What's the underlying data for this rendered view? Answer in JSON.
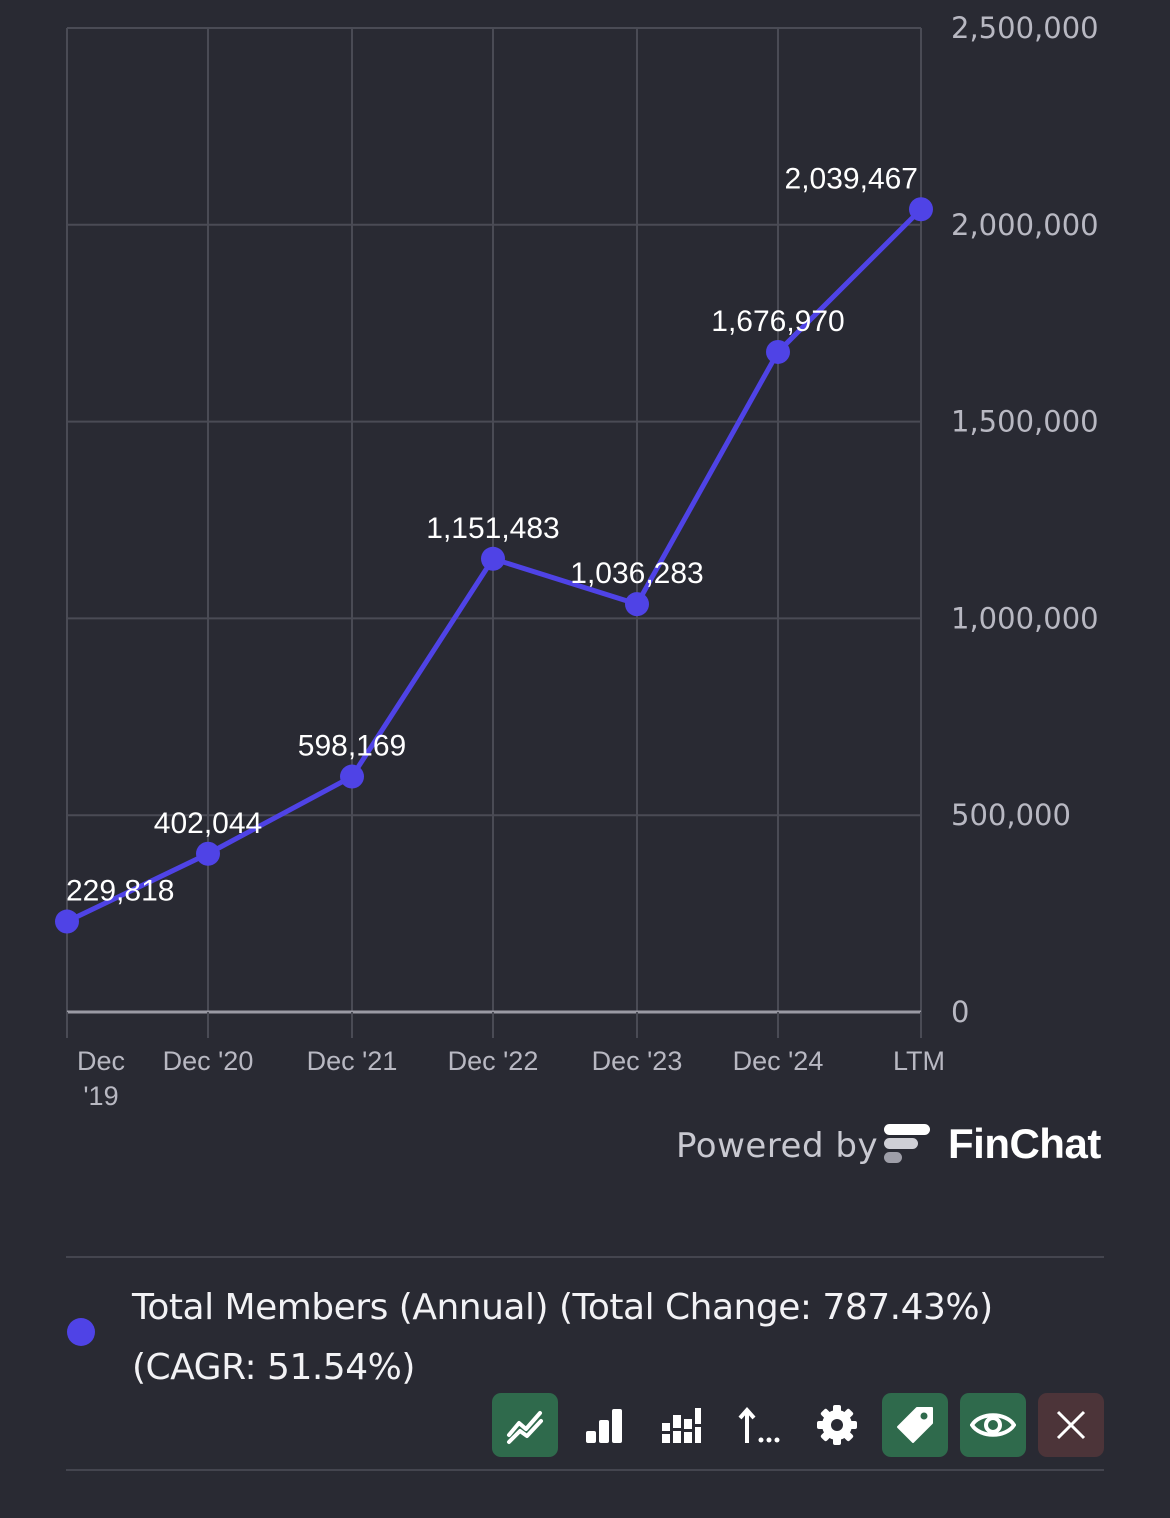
{
  "chart_data": {
    "type": "line",
    "categories": [
      "Dec '19",
      "Dec '20",
      "Dec '21",
      "Dec '22",
      "Dec '23",
      "Dec '24",
      "LTM"
    ],
    "x_tick_lines": [
      [
        "Dec",
        "'19"
      ],
      [
        "Dec '20"
      ],
      [
        "Dec '21"
      ],
      [
        "Dec '22"
      ],
      [
        "Dec '23"
      ],
      [
        "Dec '24"
      ],
      [
        "LTM"
      ]
    ],
    "series": [
      {
        "name": "Total Members (Annual)",
        "values": [
          229818,
          402044,
          598169,
          1151483,
          1036283,
          1676970,
          2039467
        ]
      }
    ],
    "data_labels": [
      "229,818",
      "402,044",
      "598,169",
      "1,151,483",
      "1,036,283",
      "1,676,970",
      "2,039,467"
    ],
    "y_ticks": [
      0,
      500000,
      1000000,
      1500000,
      2000000,
      2500000
    ],
    "y_tick_labels": [
      "0",
      "500,000",
      "1,000,000",
      "1,500,000",
      "2,000,000",
      "2,500,000"
    ],
    "ylim": [
      0,
      2500000
    ],
    "y_axis_side": "right",
    "grid": true,
    "colors": {
      "line": "#4f43e6",
      "grid": "#4a4b55",
      "background": "#292a33",
      "baseline": "#9a9aa4"
    }
  },
  "branding": {
    "powered_by": "Powered by",
    "brand": "FinChat"
  },
  "legend": {
    "text": "Total Members (Annual) (Total Change: 787.43%) (CAGR: 51.54%)",
    "color": "#4f43e6"
  },
  "toolbar": {
    "buttons": [
      {
        "icon": "line-chart-icon",
        "active": true
      },
      {
        "icon": "bar-chart-icon",
        "active": false
      },
      {
        "icon": "grouped-bar-chart-icon",
        "active": false
      },
      {
        "icon": "sort-icon",
        "label": "…",
        "active": false
      },
      {
        "icon": "gear-icon",
        "active": false
      },
      {
        "icon": "tag-icon",
        "active": true
      },
      {
        "icon": "eye-icon",
        "active": true
      },
      {
        "icon": "close-icon",
        "active": false
      }
    ]
  }
}
